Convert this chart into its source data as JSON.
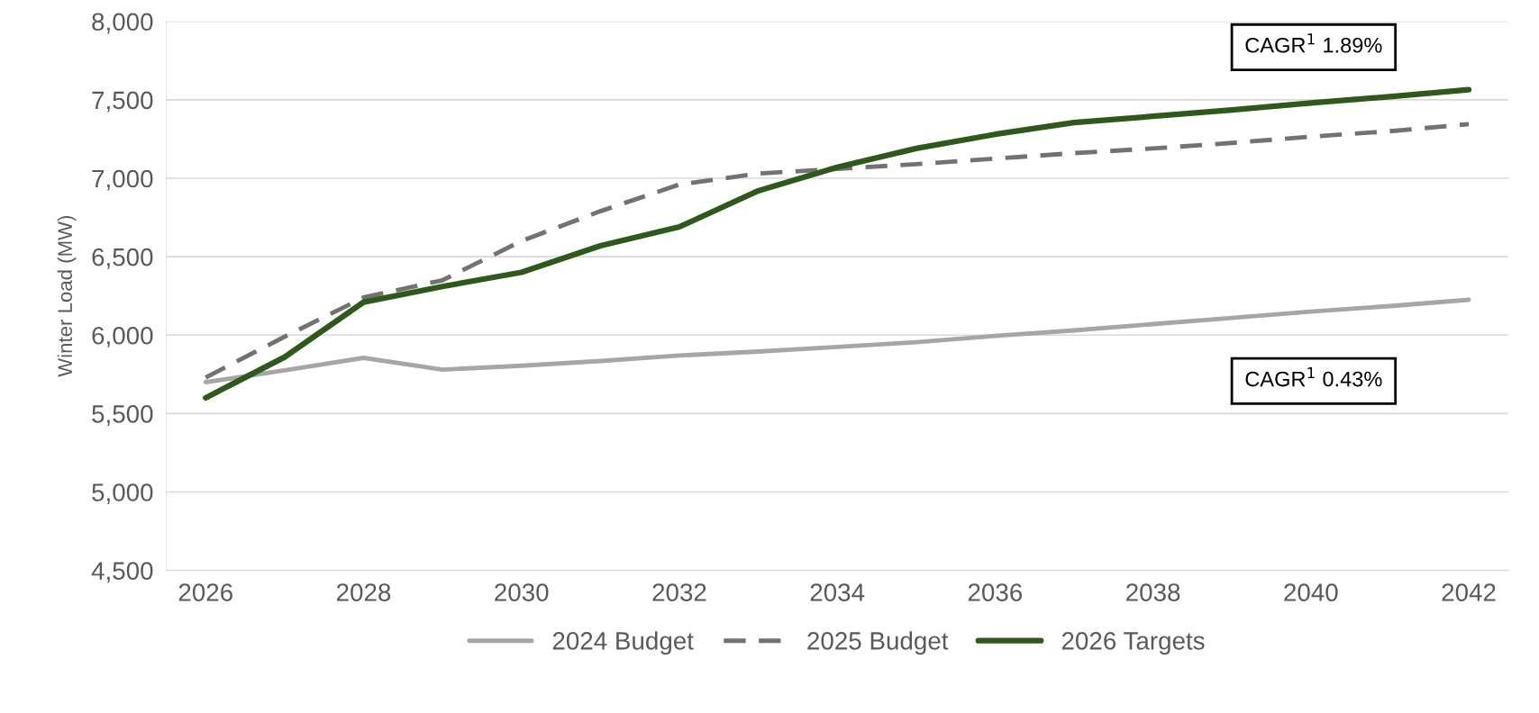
{
  "chart_data": {
    "type": "line",
    "ylabel": "Winter Load (MW)",
    "x": [
      2026,
      2027,
      2028,
      2029,
      2030,
      2031,
      2032,
      2033,
      2034,
      2035,
      2036,
      2037,
      2038,
      2039,
      2040,
      2041,
      2042
    ],
    "series": [
      {
        "name": "2024 Budget",
        "color": "#a6a6a6",
        "line_style": "solid",
        "values": [
          5700,
          5775,
          5855,
          5780,
          5805,
          5835,
          5870,
          5895,
          5925,
          5955,
          5995,
          6030,
          6070,
          6110,
          6150,
          6185,
          6225
        ]
      },
      {
        "name": "2025 Budget",
        "color": "#767171",
        "line_style": "dashed",
        "values": [
          5730,
          5990,
          6240,
          6350,
          6600,
          6790,
          6960,
          7030,
          7060,
          7090,
          7125,
          7160,
          7190,
          7225,
          7265,
          7300,
          7345
        ]
      },
      {
        "name": "2026 Targets",
        "color": "#2d5a1b",
        "line_style": "solid",
        "values": [
          5600,
          5860,
          6210,
          6310,
          6400,
          6570,
          6690,
          6920,
          7070,
          7190,
          7280,
          7355,
          7395,
          7435,
          7480,
          7520,
          7565
        ]
      }
    ],
    "xlim": [
      2025.5,
      2042.5
    ],
    "xticks": [
      2026,
      2028,
      2030,
      2032,
      2034,
      2036,
      2038,
      2040,
      2042
    ],
    "ylim": [
      4500,
      8000
    ],
    "yticks": [
      {
        "value": 4500,
        "label": "4,500"
      },
      {
        "value": 5000,
        "label": "5,000"
      },
      {
        "value": 5500,
        "label": "5,500"
      },
      {
        "value": 6000,
        "label": "6,000"
      },
      {
        "value": 6500,
        "label": "6,500"
      },
      {
        "value": 7000,
        "label": "7,000"
      },
      {
        "value": 7500,
        "label": "7,500"
      },
      {
        "value": 8000,
        "label": "8,000"
      }
    ],
    "annotations": [
      "CAGR$^{1}$ 1.89%",
      "CAGR$^{1}$ 0.43%"
    ],
    "grid": "y",
    "legend": "bottom",
    "marker": "none"
  }
}
